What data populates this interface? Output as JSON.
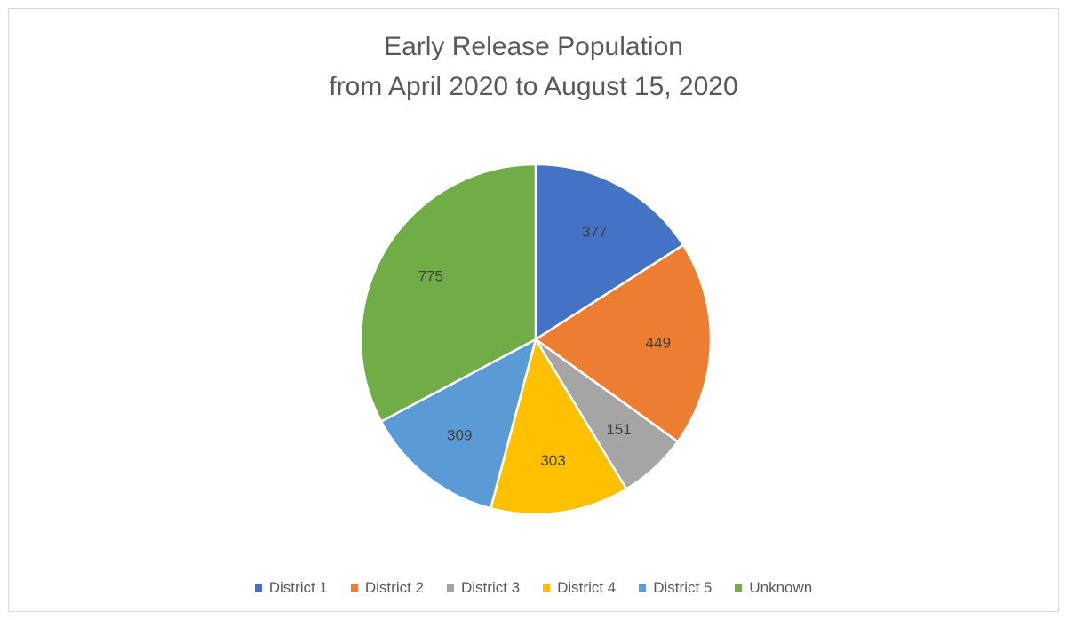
{
  "chart_data": {
    "type": "pie",
    "title": [
      "Early Release Population",
      "from April 2020 to August 15, 2020"
    ],
    "categories": [
      "District 1",
      "District 2",
      "District 3",
      "District 4",
      "District 5",
      "Unknown"
    ],
    "values": [
      377,
      449,
      151,
      303,
      309,
      775
    ],
    "colors": [
      "#4472c4",
      "#ed7d31",
      "#a5a5a5",
      "#ffc000",
      "#5b9bd5",
      "#70ad47"
    ],
    "data_labels": [
      "377",
      "449",
      "151",
      "303",
      "309",
      "775"
    ],
    "legend_position": "bottom",
    "start_angle_deg": 0,
    "direction": "clockwise"
  }
}
